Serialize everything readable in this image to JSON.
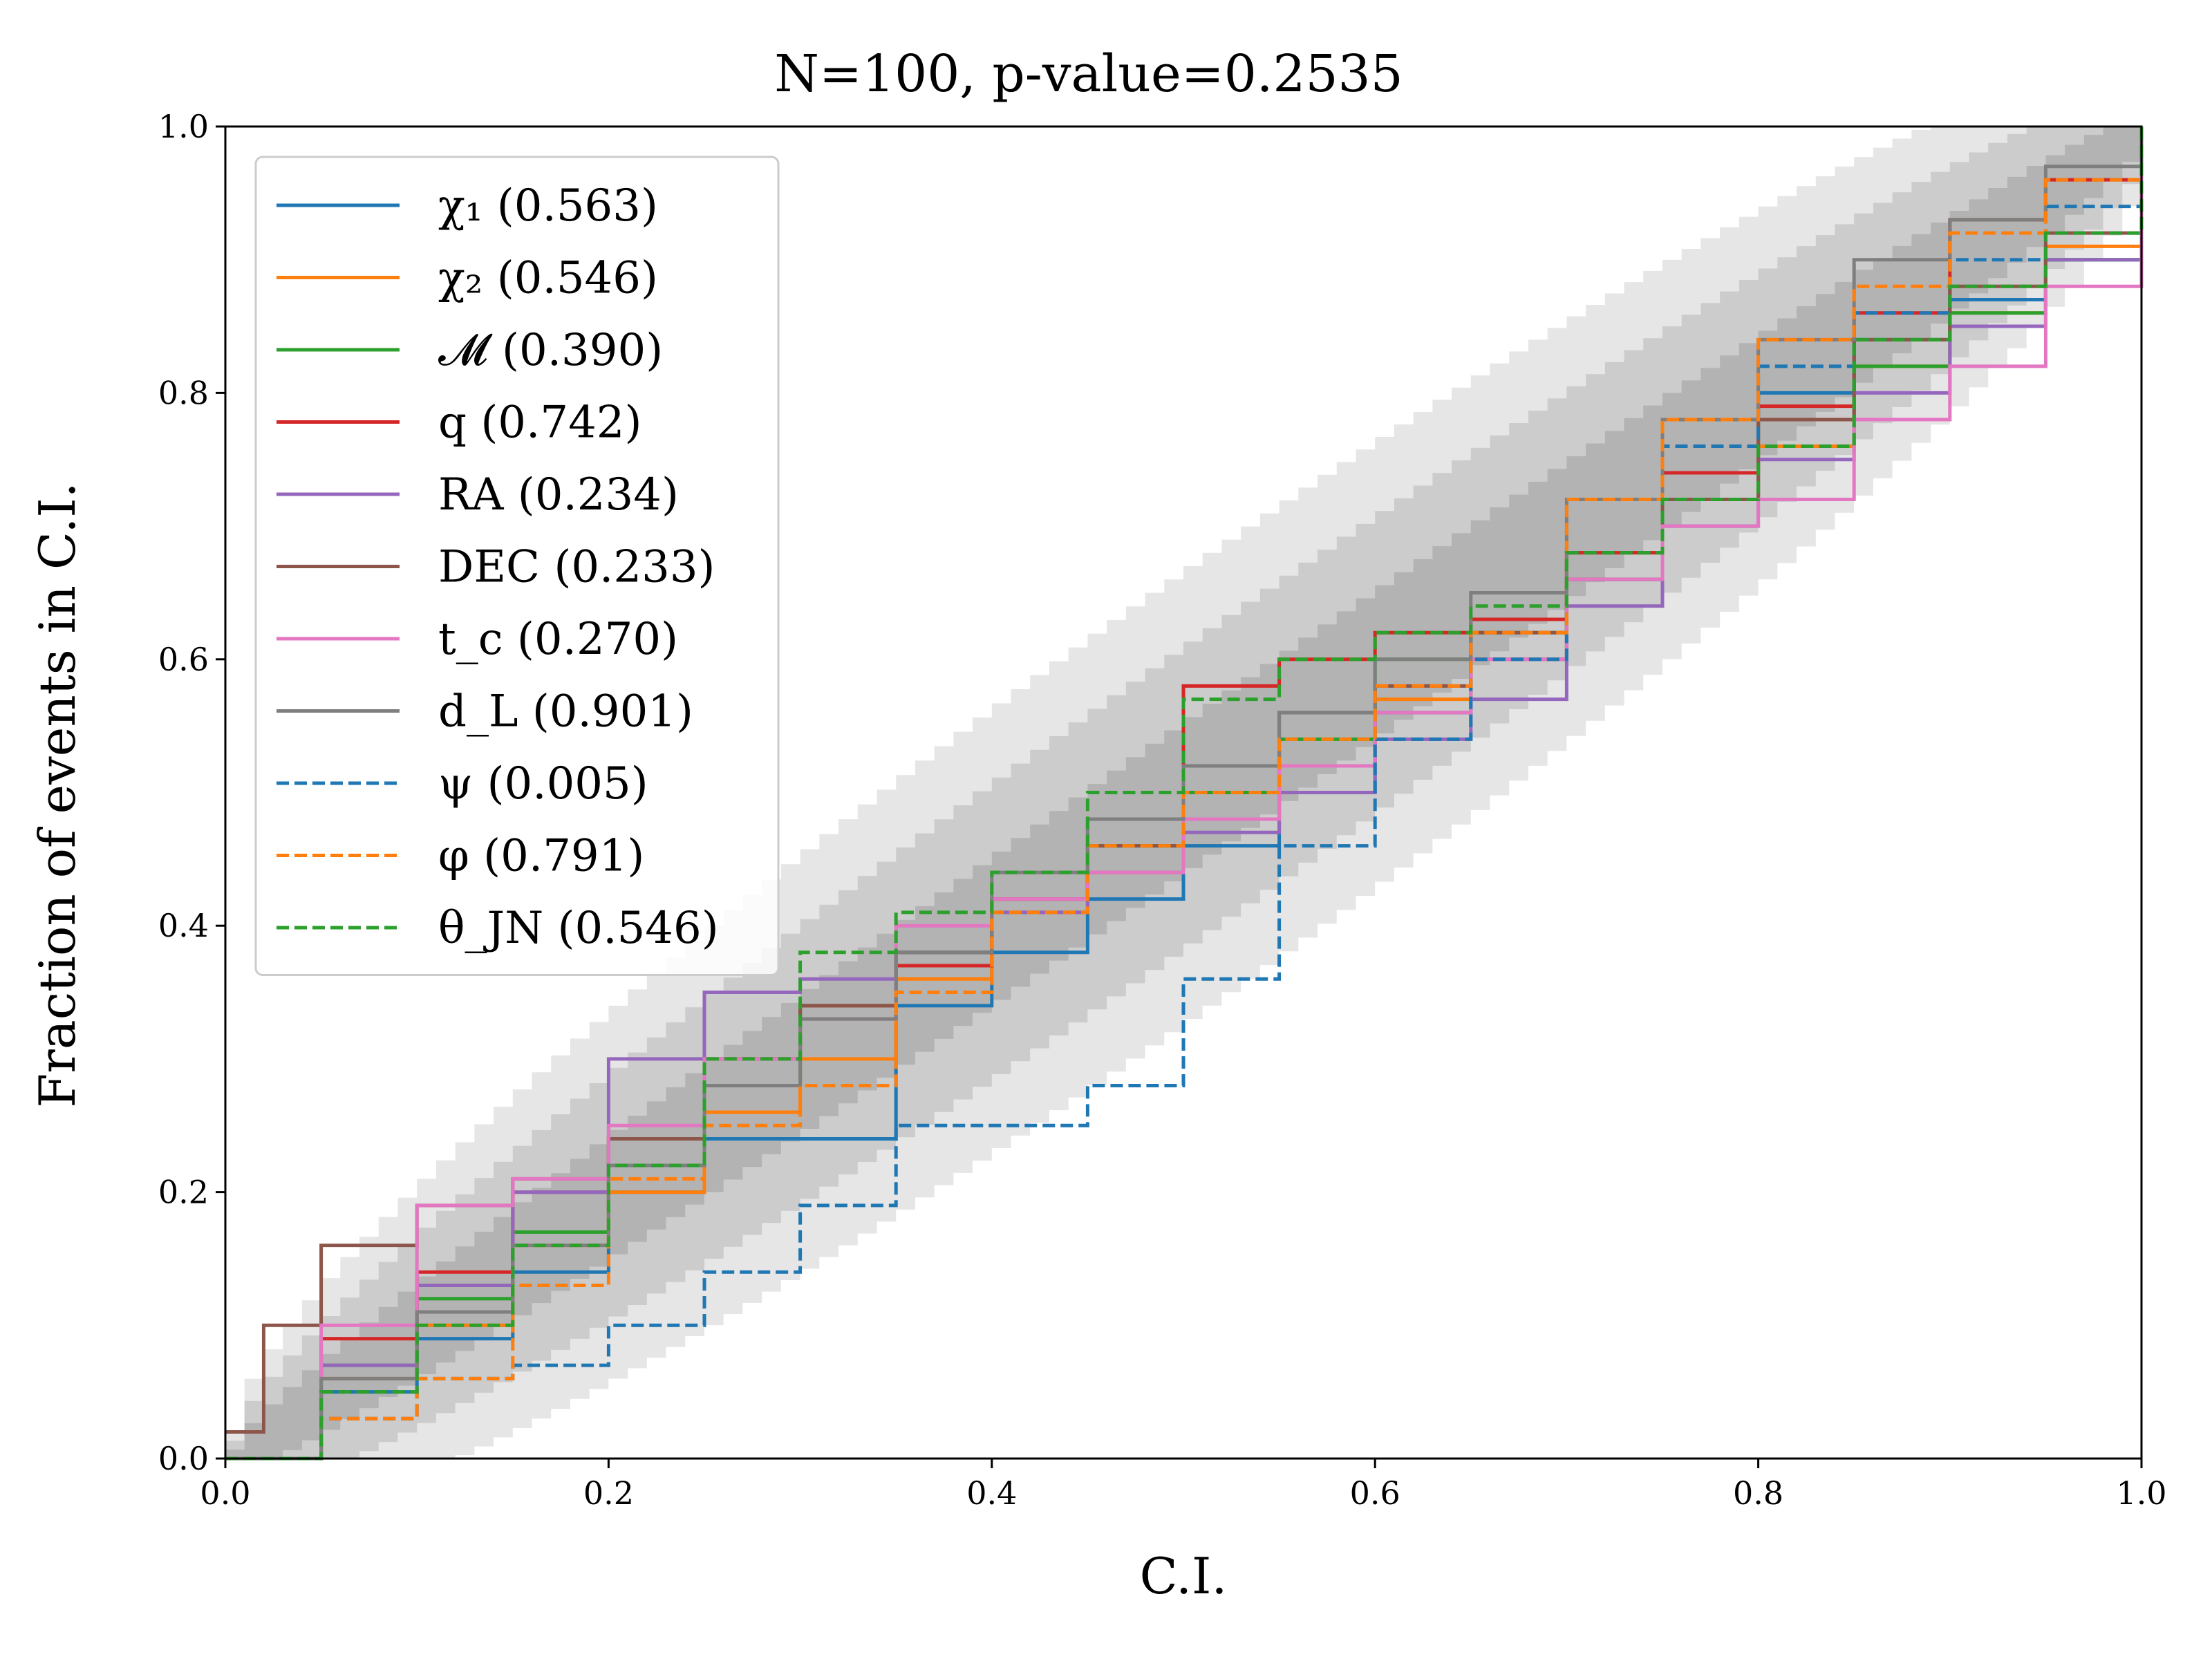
{
  "chart_data": {
    "type": "line",
    "title": "N=100, p-value=0.2535",
    "xlabel": "C.I.",
    "ylabel": "Fraction of events in C.I.",
    "xlim": [
      0.0,
      1.0
    ],
    "ylim": [
      0.0,
      1.0
    ],
    "xticks": [
      "0.0",
      "0.2",
      "0.4",
      "0.6",
      "0.8",
      "1.0"
    ],
    "yticks": [
      "0.0",
      "0.2",
      "0.4",
      "0.6",
      "0.8",
      "1.0"
    ],
    "legend_position": "upper-left",
    "confidence_bands": [
      {
        "name": "1-sigma",
        "color": "#b3b3b3"
      },
      {
        "name": "2-sigma",
        "color": "#cccccc"
      },
      {
        "name": "3-sigma",
        "color": "#e6e6e6"
      }
    ],
    "series": [
      {
        "name": "χ₁",
        "pvalue": "(0.563)",
        "color": "#1f77b4",
        "dash": "solid",
        "x": [
          0,
          0.05,
          0.1,
          0.15,
          0.2,
          0.25,
          0.3,
          0.35,
          0.4,
          0.45,
          0.5,
          0.55,
          0.6,
          0.65,
          0.7,
          0.75,
          0.8,
          0.85,
          0.9,
          0.95,
          1.0
        ],
        "y": [
          0,
          0.05,
          0.09,
          0.14,
          0.2,
          0.24,
          0.24,
          0.34,
          0.38,
          0.42,
          0.46,
          0.5,
          0.56,
          0.6,
          0.66,
          0.72,
          0.8,
          0.84,
          0.87,
          0.9,
          1.0
        ]
      },
      {
        "name": "χ₂",
        "pvalue": "(0.546)",
        "color": "#ff7f0e",
        "dash": "solid",
        "x": [
          0,
          0.05,
          0.1,
          0.15,
          0.2,
          0.25,
          0.3,
          0.35,
          0.4,
          0.45,
          0.5,
          0.55,
          0.6,
          0.65,
          0.7,
          0.75,
          0.8,
          0.85,
          0.9,
          0.95,
          1.0
        ],
        "y": [
          0,
          0.06,
          0.1,
          0.16,
          0.2,
          0.26,
          0.3,
          0.36,
          0.41,
          0.44,
          0.48,
          0.52,
          0.57,
          0.6,
          0.68,
          0.72,
          0.76,
          0.82,
          0.86,
          0.91,
          1.0
        ]
      },
      {
        "name": "𝓜",
        "pvalue": "(0.390)",
        "color": "#2ca02c",
        "dash": "solid",
        "x": [
          0,
          0.05,
          0.1,
          0.15,
          0.2,
          0.25,
          0.3,
          0.35,
          0.4,
          0.45,
          0.5,
          0.55,
          0.6,
          0.65,
          0.7,
          0.75,
          0.8,
          0.85,
          0.9,
          0.95,
          1.0
        ],
        "y": [
          0,
          0.07,
          0.12,
          0.17,
          0.22,
          0.28,
          0.34,
          0.38,
          0.42,
          0.46,
          0.5,
          0.54,
          0.6,
          0.62,
          0.66,
          0.72,
          0.78,
          0.82,
          0.86,
          0.9,
          1.0
        ]
      },
      {
        "name": "q",
        "pvalue": "(0.742)",
        "color": "#d62728",
        "dash": "solid",
        "x": [
          0,
          0.05,
          0.1,
          0.15,
          0.2,
          0.25,
          0.3,
          0.35,
          0.4,
          0.45,
          0.5,
          0.55,
          0.6,
          0.65,
          0.7,
          0.75,
          0.8,
          0.85,
          0.9,
          0.95,
          1.0
        ],
        "y": [
          0,
          0.09,
          0.14,
          0.2,
          0.24,
          0.3,
          0.34,
          0.37,
          0.42,
          0.48,
          0.58,
          0.6,
          0.62,
          0.63,
          0.68,
          0.74,
          0.79,
          0.86,
          0.93,
          0.96,
          1.0
        ]
      },
      {
        "name": "RA",
        "pvalue": "(0.234)",
        "color": "#9467bd",
        "dash": "solid",
        "x": [
          0,
          0.05,
          0.1,
          0.15,
          0.2,
          0.25,
          0.3,
          0.35,
          0.4,
          0.45,
          0.5,
          0.55,
          0.6,
          0.65,
          0.7,
          0.75,
          0.8,
          0.85,
          0.9,
          0.95,
          1.0
        ],
        "y": [
          0,
          0.07,
          0.13,
          0.2,
          0.3,
          0.35,
          0.36,
          0.38,
          0.41,
          0.44,
          0.47,
          0.5,
          0.54,
          0.57,
          0.64,
          0.7,
          0.75,
          0.8,
          0.85,
          0.9,
          1.0
        ]
      },
      {
        "name": "DEC",
        "pvalue": "(0.233)",
        "color": "#8c564b",
        "dash": "solid",
        "x": [
          0,
          0.02,
          0.05,
          0.1,
          0.15,
          0.2,
          0.25,
          0.3,
          0.35,
          0.4,
          0.45,
          0.5,
          0.55,
          0.6,
          0.65,
          0.7,
          0.75,
          0.8,
          0.85,
          0.9,
          0.95,
          1.0
        ],
        "y": [
          0.02,
          0.1,
          0.16,
          0.19,
          0.21,
          0.24,
          0.3,
          0.34,
          0.38,
          0.42,
          0.46,
          0.52,
          0.56,
          0.58,
          0.62,
          0.66,
          0.72,
          0.78,
          0.84,
          0.88,
          0.92,
          1.0
        ]
      },
      {
        "name": "t_c",
        "pvalue": "(0.270)",
        "color": "#e377c2",
        "dash": "solid",
        "x": [
          0,
          0.05,
          0.1,
          0.15,
          0.2,
          0.25,
          0.3,
          0.35,
          0.4,
          0.45,
          0.5,
          0.55,
          0.6,
          0.65,
          0.7,
          0.75,
          0.8,
          0.85,
          0.9,
          0.95,
          1.0
        ],
        "y": [
          0,
          0.1,
          0.19,
          0.21,
          0.25,
          0.3,
          0.33,
          0.4,
          0.42,
          0.44,
          0.48,
          0.52,
          0.56,
          0.6,
          0.66,
          0.7,
          0.72,
          0.78,
          0.82,
          0.88,
          1.0
        ]
      },
      {
        "name": "d_L",
        "pvalue": "(0.901)",
        "color": "#7f7f7f",
        "dash": "solid",
        "x": [
          0,
          0.05,
          0.1,
          0.15,
          0.2,
          0.25,
          0.3,
          0.35,
          0.4,
          0.45,
          0.5,
          0.55,
          0.6,
          0.65,
          0.7,
          0.75,
          0.8,
          0.85,
          0.9,
          0.95,
          1.0
        ],
        "y": [
          0,
          0.06,
          0.11,
          0.16,
          0.22,
          0.28,
          0.33,
          0.38,
          0.44,
          0.48,
          0.52,
          0.56,
          0.6,
          0.65,
          0.72,
          0.78,
          0.84,
          0.9,
          0.93,
          0.97,
          1.0
        ]
      },
      {
        "name": "ψ",
        "pvalue": "(0.005)",
        "color": "#1f77b4",
        "dash": "dashed",
        "x": [
          0,
          0.05,
          0.1,
          0.15,
          0.2,
          0.25,
          0.3,
          0.35,
          0.4,
          0.45,
          0.5,
          0.55,
          0.6,
          0.65,
          0.7,
          0.75,
          0.8,
          0.85,
          0.9,
          0.95,
          1.0
        ],
        "y": [
          0,
          0.03,
          0.06,
          0.07,
          0.1,
          0.14,
          0.19,
          0.25,
          0.25,
          0.28,
          0.36,
          0.46,
          0.54,
          0.6,
          0.68,
          0.76,
          0.82,
          0.86,
          0.9,
          0.94,
          1.0
        ]
      },
      {
        "name": "φ",
        "pvalue": "(0.791)",
        "color": "#ff7f0e",
        "dash": "dashed",
        "x": [
          0,
          0.05,
          0.1,
          0.15,
          0.2,
          0.25,
          0.3,
          0.35,
          0.4,
          0.45,
          0.5,
          0.55,
          0.6,
          0.65,
          0.7,
          0.75,
          0.8,
          0.85,
          0.9,
          0.95,
          1.0
        ],
        "y": [
          0,
          0.03,
          0.06,
          0.13,
          0.21,
          0.25,
          0.28,
          0.35,
          0.41,
          0.46,
          0.5,
          0.54,
          0.58,
          0.62,
          0.72,
          0.78,
          0.84,
          0.88,
          0.92,
          0.96,
          1.0
        ]
      },
      {
        "name": "θ_JN",
        "pvalue": "(0.546)",
        "color": "#2ca02c",
        "dash": "dashed",
        "x": [
          0,
          0.05,
          0.1,
          0.15,
          0.2,
          0.25,
          0.3,
          0.35,
          0.4,
          0.45,
          0.5,
          0.55,
          0.6,
          0.65,
          0.7,
          0.75,
          0.8,
          0.85,
          0.9,
          0.95,
          1.0
        ],
        "y": [
          0,
          0.05,
          0.1,
          0.16,
          0.22,
          0.3,
          0.38,
          0.41,
          0.44,
          0.5,
          0.57,
          0.6,
          0.62,
          0.64,
          0.68,
          0.72,
          0.76,
          0.84,
          0.88,
          0.92,
          1.0
        ]
      }
    ]
  }
}
